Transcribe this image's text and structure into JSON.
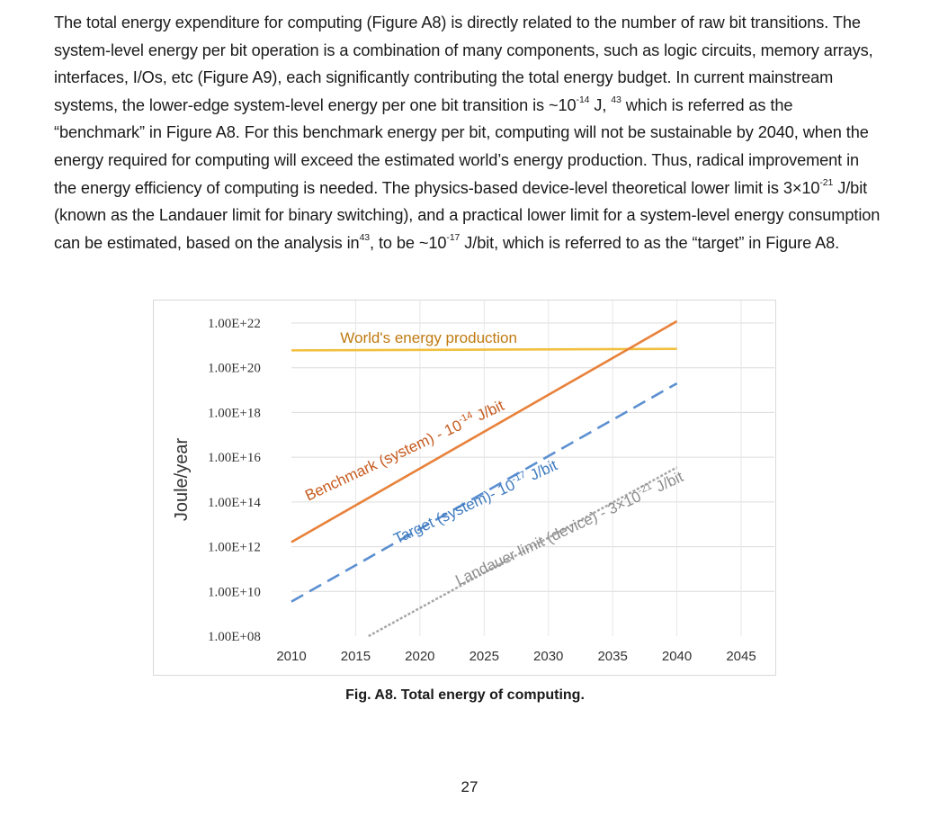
{
  "paragraph": {
    "s1": "The total energy expenditure for computing (Figure A8) is directly related to the number of raw bit transitions. The system-level energy per bit operation is a combination of many components, such as logic circuits, memory arrays, interfaces, I/Os, etc (Figure A9), each significantly contributing the total energy budget. In current mainstream systems, the lower-edge system-level energy per one bit transition is ~10",
    "sup1": "-14",
    "s2": " J, ",
    "sup2": "43",
    "s3": " which is referred as the “benchmark” in Figure A8. For this benchmark energy per bit, computing will not be sustainable by 2040, when the energy required for computing will exceed the estimated world’s energy production. Thus, radical improvement in the energy efficiency of computing is needed. The physics-based device-level theoretical lower limit is 3×10",
    "sup3": "-21",
    "s4": " J/bit (known as the Landauer limit for binary switching), and a practical lower limit for a system-level energy consumption can be estimated, based on the analysis in",
    "sup4": "43",
    "s5": ", to be ~10",
    "sup5": "-17",
    "s6": " J/bit, which is referred to as the “target” in Figure A8."
  },
  "figure": {
    "caption": "Fig. A8. Total energy of computing.",
    "page_number": "27"
  },
  "chart_data": {
    "type": "line",
    "title": "",
    "xlabel": "",
    "ylabel": "Joule/year",
    "x_ticks": [
      "2010",
      "2015",
      "2020",
      "2025",
      "2030",
      "2035",
      "2040",
      "2045"
    ],
    "y_ticks": [
      "1.00E+08",
      "1.00E+10",
      "1.00E+12",
      "1.00E+14",
      "1.00E+16",
      "1.00E+18",
      "1.00E+20",
      "1.00E+22"
    ],
    "xlim": [
      2010,
      2045
    ],
    "ylim": [
      100000000.0,
      1e+22
    ],
    "y_scale": "log",
    "grid": "horizontal",
    "legend": "none (inline labels)",
    "series": [
      {
        "name": "World's energy production",
        "color": "#f2c040",
        "dash": "solid",
        "points": [
          [
            2010,
            6e+20
          ],
          [
            2040,
            7e+20
          ]
        ]
      },
      {
        "label_parts": [
          "Benchmark (system) - 10",
          "-14",
          " J/bit"
        ],
        "color": "#e8813a",
        "dash": "solid",
        "points": [
          [
            2010,
            1600000000000.0
          ],
          [
            2040,
            1.2e+22
          ]
        ]
      },
      {
        "label_parts": [
          "Target (system)- 10",
          "-17",
          " J/bit"
        ],
        "color": "#5b8fd1",
        "dash": "dashed",
        "points": [
          [
            2010,
            3500000000.0
          ],
          [
            2040,
            2e+19
          ]
        ]
      },
      {
        "label_parts": [
          "Landauer limit (device) - 3×10",
          "-21",
          " J/bit"
        ],
        "color": "#a6a6a6",
        "dash": "dotted",
        "points": [
          [
            2016,
            100000000.0
          ],
          [
            2040,
            3500000000000000.0
          ]
        ]
      }
    ]
  }
}
